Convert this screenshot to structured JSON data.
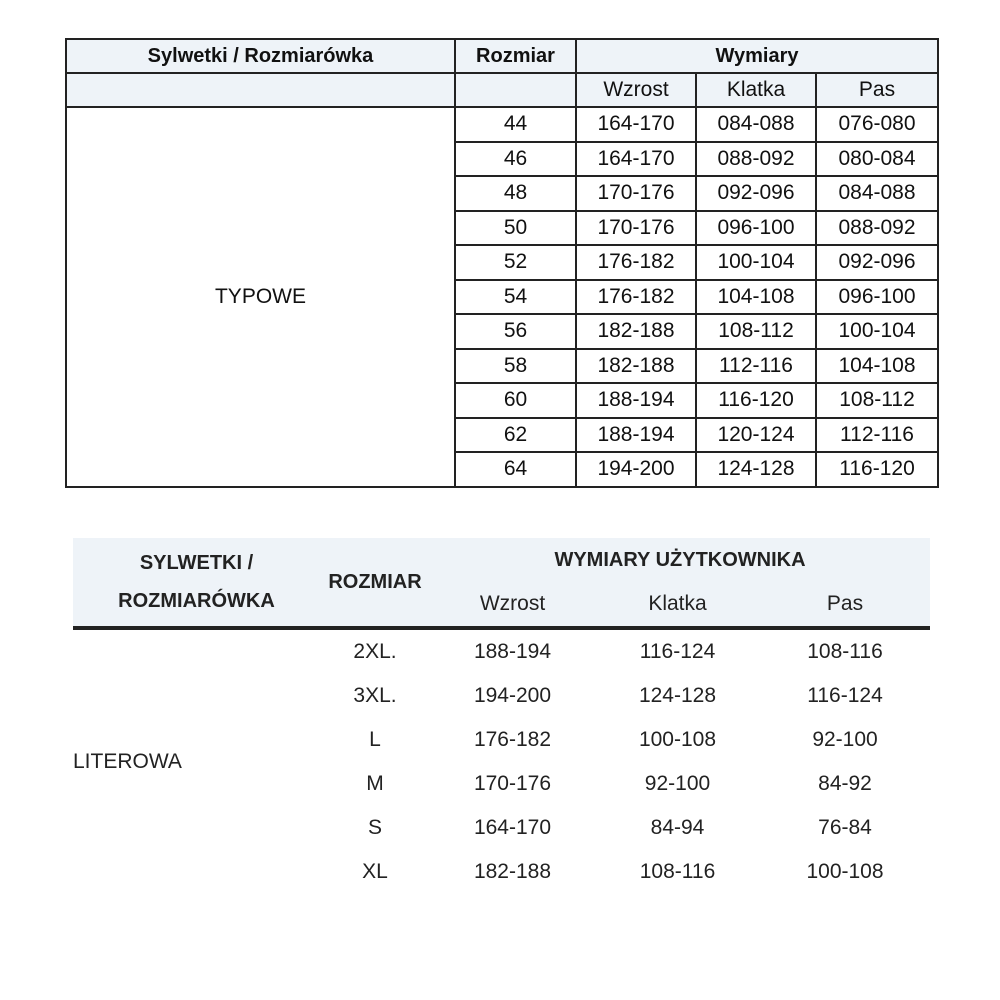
{
  "table1": {
    "header": {
      "silhouette": "Sylwetki /  Rozmiarówka",
      "size": "Rozmiar",
      "measurements": "Wymiary"
    },
    "subheader": [
      "Wzrost",
      "Klatka",
      "Pas"
    ],
    "group_label": "TYPOWE",
    "rows": [
      [
        "44",
        "164-170",
        "084-088",
        "076-080"
      ],
      [
        "46",
        "164-170",
        "088-092",
        "080-084"
      ],
      [
        "48",
        "170-176",
        "092-096",
        "084-088"
      ],
      [
        "50",
        "170-176",
        "096-100",
        "088-092"
      ],
      [
        "52",
        "176-182",
        "100-104",
        "092-096"
      ],
      [
        "54",
        "176-182",
        "104-108",
        "096-100"
      ],
      [
        "56",
        "182-188",
        "108-112",
        "100-104"
      ],
      [
        "58",
        "182-188",
        "112-116",
        "104-108"
      ],
      [
        "60",
        "188-194",
        "116-120",
        "108-112"
      ],
      [
        "62",
        "188-194",
        "120-124",
        "112-116"
      ],
      [
        "64",
        "194-200",
        "124-128",
        "116-120"
      ]
    ]
  },
  "table2": {
    "header": {
      "silhouette_line1": "SYLWETKI /",
      "silhouette_line2": "ROZMIARÓWKA",
      "size": "ROZMIAR",
      "measurements": "WYMIARY UŻYTKOWNIKA"
    },
    "subheader": [
      "Wzrost",
      "Klatka",
      "Pas"
    ],
    "group_label": "LITEROWA",
    "rows": [
      [
        "2XL.",
        "188-194",
        "116-124",
        "108-116"
      ],
      [
        "3XL.",
        "194-200",
        "124-128",
        "116-124"
      ],
      [
        "L",
        "176-182",
        "100-108",
        "92-100"
      ],
      [
        "M",
        "170-176",
        "92-100",
        "84-92"
      ],
      [
        "S",
        "164-170",
        "84-94",
        "76-84"
      ],
      [
        "XL",
        "182-188",
        "108-116",
        "100-108"
      ]
    ]
  },
  "colors": {
    "header_bg": "#eef3f8",
    "border": "#222222"
  }
}
